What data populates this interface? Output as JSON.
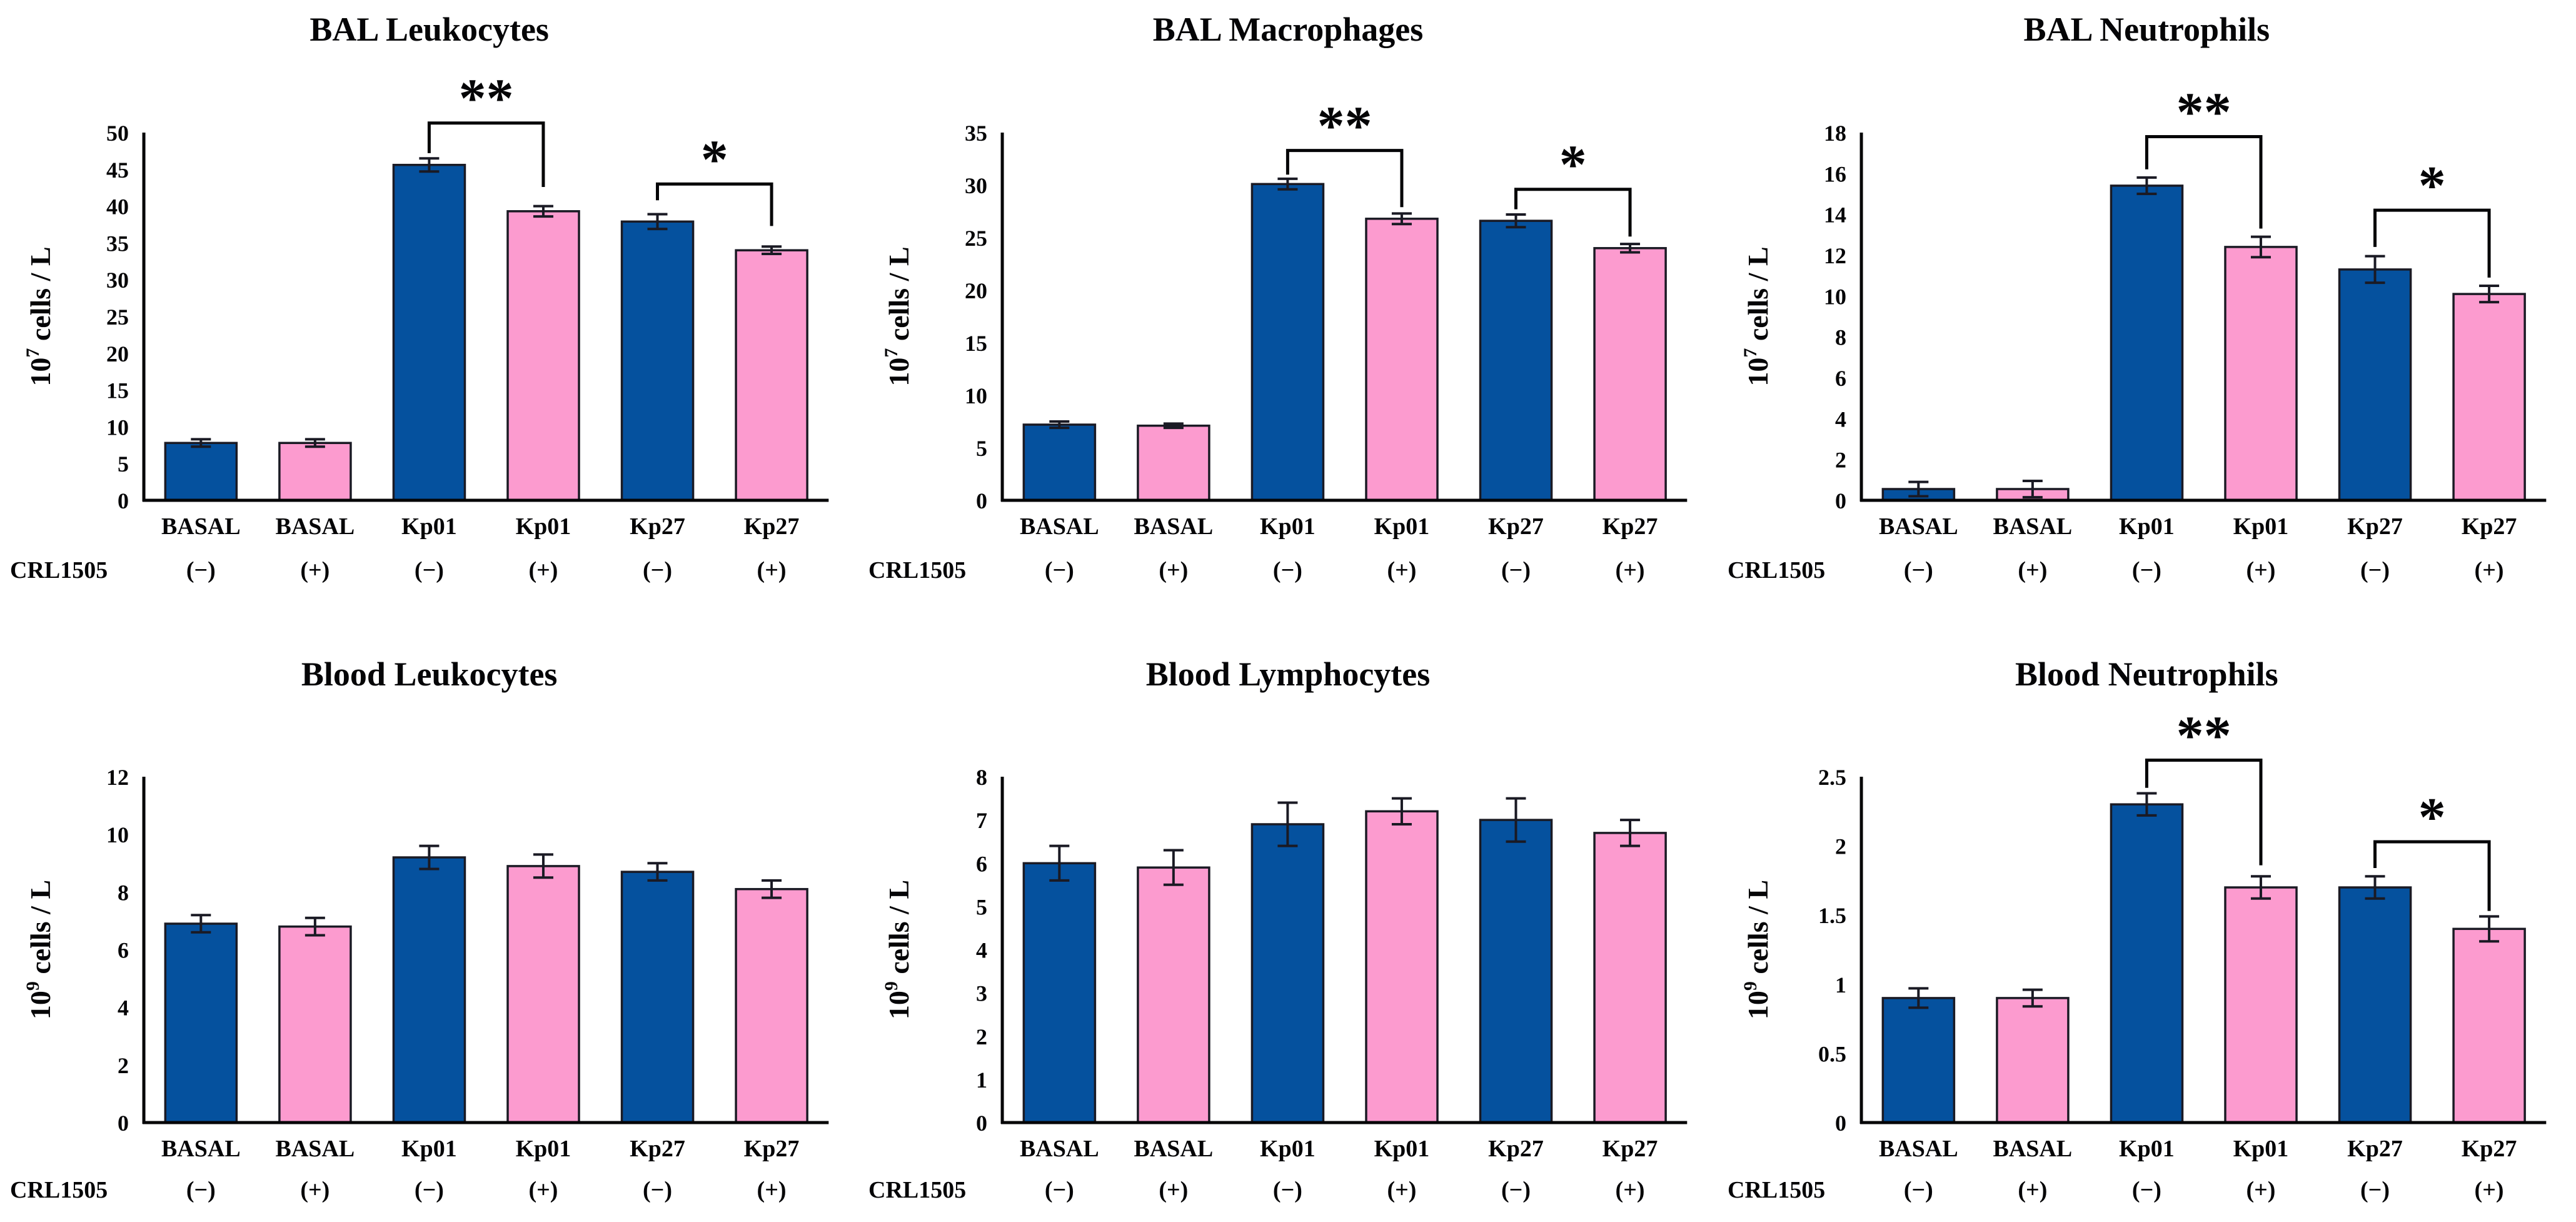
{
  "figure": {
    "background": "#ffffff",
    "bar_blue": "#05519E",
    "bar_pink": "#FC9BCF",
    "bar_outline": "#1A1A24",
    "axis_color": "#050507",
    "row_label": "CRL1505"
  },
  "chart_data": [
    {
      "type": "bar",
      "title": "BAL Leukocytes",
      "ylabel": {
        "base": "10",
        "exp": "7",
        "rest": " cells / L"
      },
      "ylim": [
        0,
        50
      ],
      "ytick_step": 5,
      "grid": false,
      "categories": [
        "BASAL",
        "BASAL",
        "Kp01",
        "Kp01",
        "Kp27",
        "Kp27"
      ],
      "crl1505": [
        "(−)",
        "(+)",
        "(−)",
        "(+)",
        "(−)",
        "(+)"
      ],
      "series_colors": [
        "blue",
        "pink",
        "blue",
        "pink",
        "blue",
        "pink"
      ],
      "values": [
        7.8,
        7.8,
        45.6,
        39.3,
        37.9,
        34.0
      ],
      "errors": [
        0.5,
        0.5,
        0.9,
        0.7,
        1.0,
        0.5
      ],
      "significance": [
        {
          "from": 2,
          "to": 3,
          "label": "**",
          "line_y": 51.3,
          "left_drop_to": 47.2,
          "right_drop_to": 42.6
        },
        {
          "from": 4,
          "to": 5,
          "label": "*",
          "line_y": 43.0,
          "left_drop_to": 40.8,
          "right_drop_to": 37.3
        }
      ]
    },
    {
      "type": "bar",
      "title": "BAL Macrophages",
      "ylabel": {
        "base": "10",
        "exp": "7",
        "rest": " cells / L"
      },
      "ylim": [
        0,
        35
      ],
      "ytick_step": 5,
      "grid": false,
      "categories": [
        "BASAL",
        "BASAL",
        "Kp01",
        "Kp01",
        "Kp27",
        "Kp27"
      ],
      "crl1505": [
        "(−)",
        "(+)",
        "(−)",
        "(+)",
        "(−)",
        "(+)"
      ],
      "series_colors": [
        "blue",
        "pink",
        "blue",
        "pink",
        "blue",
        "pink"
      ],
      "values": [
        7.2,
        7.1,
        30.1,
        26.8,
        26.6,
        24.0
      ],
      "errors": [
        0.3,
        0.2,
        0.5,
        0.5,
        0.6,
        0.4
      ],
      "significance": [
        {
          "from": 2,
          "to": 3,
          "label": "**",
          "line_y": 33.3,
          "left_drop_to": 31.0,
          "right_drop_to": 27.9
        },
        {
          "from": 4,
          "to": 5,
          "label": "*",
          "line_y": 29.6,
          "left_drop_to": 27.7,
          "right_drop_to": 25.1
        }
      ]
    },
    {
      "type": "bar",
      "title": "BAL Neutrophils",
      "ylabel": {
        "base": "10",
        "exp": "7",
        "rest": " cells / L"
      },
      "ylim": [
        0,
        18
      ],
      "ytick_step": 2,
      "grid": false,
      "categories": [
        "BASAL",
        "BASAL",
        "Kp01",
        "Kp01",
        "Kp27",
        "Kp27"
      ],
      "crl1505": [
        "(−)",
        "(+)",
        "(−)",
        "(+)",
        "(−)",
        "(+)"
      ],
      "series_colors": [
        "blue",
        "pink",
        "blue",
        "pink",
        "blue",
        "pink"
      ],
      "values": [
        0.55,
        0.55,
        15.4,
        12.4,
        11.3,
        10.1
      ],
      "errors": [
        0.35,
        0.4,
        0.4,
        0.5,
        0.65,
        0.4
      ],
      "significance": [
        {
          "from": 2,
          "to": 3,
          "label": "**",
          "line_y": 17.8,
          "left_drop_to": 16.2,
          "right_drop_to": 13.3
        },
        {
          "from": 4,
          "to": 5,
          "label": "*",
          "line_y": 14.2,
          "left_drop_to": 12.4,
          "right_drop_to": 10.9
        }
      ]
    },
    {
      "type": "bar",
      "title": "Blood Leukocytes",
      "ylabel": {
        "base": "10",
        "exp": "9",
        "rest": " cells / L"
      },
      "ylim": [
        0,
        12
      ],
      "ytick_step": 2,
      "grid": false,
      "categories": [
        "BASAL",
        "BASAL",
        "Kp01",
        "Kp01",
        "Kp27",
        "Kp27"
      ],
      "crl1505": [
        "(−)",
        "(+)",
        "(−)",
        "(+)",
        "(−)",
        "(+)"
      ],
      "series_colors": [
        "blue",
        "pink",
        "blue",
        "pink",
        "blue",
        "pink"
      ],
      "values": [
        6.9,
        6.8,
        9.2,
        8.9,
        8.7,
        8.1
      ],
      "errors": [
        0.3,
        0.3,
        0.4,
        0.4,
        0.3,
        0.3
      ],
      "significance": []
    },
    {
      "type": "bar",
      "title": "Blood Lymphocytes",
      "ylabel": {
        "base": "10",
        "exp": "9",
        "rest": " cells / L"
      },
      "ylim": [
        0,
        8
      ],
      "ytick_step": 1,
      "grid": false,
      "categories": [
        "BASAL",
        "BASAL",
        "Kp01",
        "Kp01",
        "Kp27",
        "Kp27"
      ],
      "crl1505": [
        "(−)",
        "(+)",
        "(−)",
        "(+)",
        "(−)",
        "(+)"
      ],
      "series_colors": [
        "blue",
        "pink",
        "blue",
        "pink",
        "blue",
        "pink"
      ],
      "values": [
        6.0,
        5.9,
        6.9,
        7.2,
        7.0,
        6.7
      ],
      "errors": [
        0.4,
        0.4,
        0.5,
        0.3,
        0.5,
        0.3
      ],
      "significance": []
    },
    {
      "type": "bar",
      "title": "Blood Neutrophils",
      "ylabel": {
        "base": "10",
        "exp": "9",
        "rest": " cells / L"
      },
      "ylim": [
        0,
        2.5
      ],
      "ytick_step": 0.5,
      "grid": false,
      "categories": [
        "BASAL",
        "BASAL",
        "Kp01",
        "Kp01",
        "Kp27",
        "Kp27"
      ],
      "crl1505": [
        "(−)",
        "(+)",
        "(−)",
        "(+)",
        "(−)",
        "(+)"
      ],
      "series_colors": [
        "blue",
        "pink",
        "blue",
        "pink",
        "blue",
        "pink"
      ],
      "values": [
        0.9,
        0.9,
        2.3,
        1.7,
        1.7,
        1.4
      ],
      "errors": [
        0.07,
        0.06,
        0.08,
        0.08,
        0.08,
        0.09
      ],
      "significance": [
        {
          "from": 2,
          "to": 3,
          "label": "**",
          "line_y": 2.62,
          "left_drop_to": 2.42,
          "right_drop_to": 1.86
        },
        {
          "from": 4,
          "to": 5,
          "label": "*",
          "line_y": 2.03,
          "left_drop_to": 1.84,
          "right_drop_to": 1.53
        }
      ]
    }
  ]
}
